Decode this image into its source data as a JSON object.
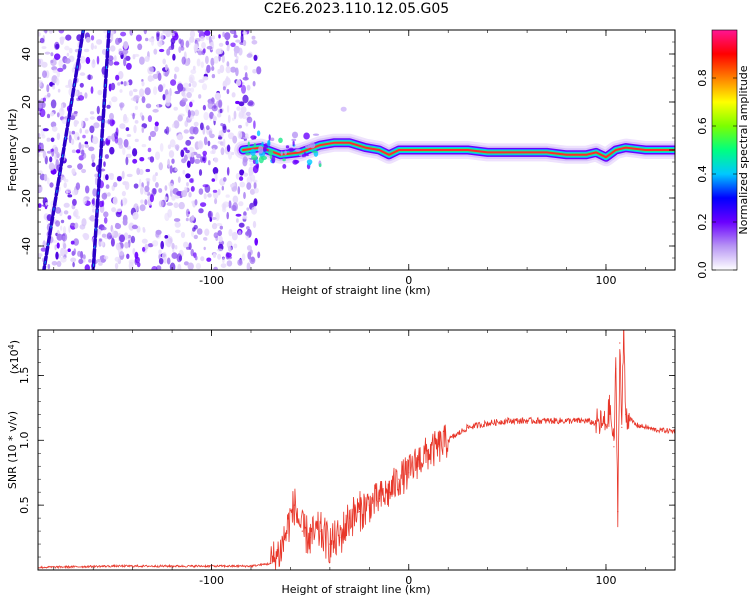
{
  "title": "C2E6.2023.110.12.05.G05",
  "chart_data": [
    {
      "type": "heatmap",
      "xlabel": "Height of straight line (km)",
      "ylabel": "Frequency (Hz)",
      "xlim": [
        -188,
        135
      ],
      "ylim": [
        -50,
        50
      ],
      "x_ticks": [
        -100,
        0,
        100
      ],
      "y_ticks": [
        -40,
        -20,
        0,
        20,
        40
      ],
      "colorbar": {
        "label": "Normalized spectral amplitude",
        "range": [
          0,
          1
        ],
        "ticks": [
          "0.0",
          "0.2",
          "0.4",
          "0.6",
          "0.8"
        ],
        "colors": [
          "#ffffff",
          "#b794f4",
          "#6a00ff",
          "#0000ff",
          "#00c8ff",
          "#00ff80",
          "#7cff00",
          "#ffff00",
          "#ff8000",
          "#ff0000",
          "#ff1493"
        ]
      },
      "noise_region": {
        "x_range": [
          -188,
          -76
        ],
        "note_color": "#6a00ff"
      },
      "diagonal_streaks": [
        {
          "x_top": -165,
          "y_top": 50,
          "x_bottom": -185,
          "y_bottom": -50
        },
        {
          "x_top": -152,
          "y_top": 50,
          "x_bottom": -160,
          "y_bottom": -50
        }
      ],
      "signal_trace": {
        "x": [
          -84,
          -75,
          -65,
          -55,
          -45,
          -38,
          -30,
          -22,
          -15,
          -10,
          -5,
          0,
          10,
          20,
          30,
          40,
          50,
          60,
          70,
          80,
          90,
          95,
          100,
          105,
          110,
          120,
          135
        ],
        "y": [
          0,
          1,
          -2,
          -1,
          2,
          3,
          3,
          1,
          0,
          -2,
          0,
          0,
          0,
          0,
          0,
          -1,
          -1,
          -1,
          -1,
          -2,
          -2,
          -1,
          -3,
          0,
          1,
          0,
          0
        ]
      }
    },
    {
      "type": "line",
      "xlabel": "Height of straight line (km)",
      "ylabel": "SNR (10 * v/v)",
      "multiplier_label": "(x10",
      "multiplier_exp": "4",
      "multiplier_close": ")",
      "xlim": [
        -188,
        135
      ],
      "ylim": [
        0,
        1.85
      ],
      "x_ticks": [
        -100,
        0,
        100
      ],
      "y_ticks": [
        "0.5",
        "1.0",
        "1.5"
      ],
      "color": "#e8372a",
      "series": [
        {
          "x": [
            -188,
            -150,
            -110,
            -80,
            -70,
            -65,
            -62,
            -58,
            -54,
            -50,
            -45,
            -40,
            -35,
            -30,
            -25,
            -20,
            -15,
            -10,
            -5,
            0,
            5,
            10,
            15,
            20,
            25,
            30,
            40,
            50,
            60,
            70,
            80,
            90,
            95,
            100,
            102,
            104,
            105,
            106,
            107,
            108,
            109,
            110,
            115,
            120,
            125,
            135
          ],
          "y": [
            0.02,
            0.03,
            0.03,
            0.03,
            0.05,
            0.15,
            0.3,
            0.5,
            0.3,
            0.25,
            0.3,
            0.2,
            0.25,
            0.4,
            0.45,
            0.5,
            0.55,
            0.6,
            0.7,
            0.75,
            0.85,
            0.9,
            0.95,
            1.0,
            1.05,
            1.1,
            1.13,
            1.15,
            1.15,
            1.15,
            1.15,
            1.15,
            1.13,
            1.12,
            1.25,
            0.95,
            1.55,
            0.45,
            1.75,
            1.1,
            1.85,
            1.2,
            1.12,
            1.1,
            1.08,
            1.07
          ]
        }
      ]
    }
  ]
}
